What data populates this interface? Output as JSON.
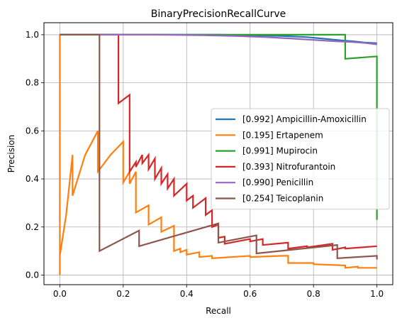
{
  "chart_data": {
    "type": "line",
    "title": "BinaryPrecisionRecallCurve",
    "xlabel": "Recall",
    "ylabel": "Precision",
    "xlim": [
      -0.05,
      1.05
    ],
    "ylim": [
      -0.04,
      1.05
    ],
    "xticks": [
      "0.0",
      "0.2",
      "0.4",
      "0.6",
      "0.8",
      "1.0"
    ],
    "yticks": [
      "0.0",
      "0.2",
      "0.4",
      "0.6",
      "0.8",
      "1.0"
    ],
    "grid": true,
    "legend_position": "center-right",
    "series": [
      {
        "name": "[0.992] Ampicillin-Amoxicillin",
        "color": "#1f77b4",
        "points": [
          [
            0,
            1
          ],
          [
            0.3,
            1
          ],
          [
            0.5,
            1
          ],
          [
            0.6,
            0.998
          ],
          [
            0.7,
            0.995
          ],
          [
            0.78,
            0.99
          ],
          [
            0.82,
            0.985
          ],
          [
            0.86,
            0.98
          ],
          [
            0.9,
            0.975
          ],
          [
            0.93,
            0.972
          ],
          [
            0.96,
            0.968
          ],
          [
            0.98,
            0.966
          ],
          [
            1.0,
            0.965
          ]
        ]
      },
      {
        "name": "[0.195] Ertapenem",
        "color": "#ff7f0e",
        "points": [
          [
            0,
            0
          ],
          [
            0,
            1
          ],
          [
            0,
            0.08
          ],
          [
            0.02,
            0.25
          ],
          [
            0.04,
            0.5
          ],
          [
            0.04,
            0.33
          ],
          [
            0.08,
            0.5
          ],
          [
            0.1,
            0.55
          ],
          [
            0.12,
            0.6
          ],
          [
            0.12,
            0.43
          ],
          [
            0.16,
            0.5
          ],
          [
            0.2,
            0.555
          ],
          [
            0.2,
            0.385
          ],
          [
            0.22,
            0.43
          ],
          [
            0.22,
            0.38
          ],
          [
            0.24,
            0.43
          ],
          [
            0.24,
            0.26
          ],
          [
            0.28,
            0.29
          ],
          [
            0.28,
            0.21
          ],
          [
            0.32,
            0.24
          ],
          [
            0.32,
            0.18
          ],
          [
            0.36,
            0.205
          ],
          [
            0.36,
            0.1
          ],
          [
            0.38,
            0.11
          ],
          [
            0.38,
            0.095
          ],
          [
            0.4,
            0.105
          ],
          [
            0.4,
            0.085
          ],
          [
            0.44,
            0.095
          ],
          [
            0.44,
            0.075
          ],
          [
            0.48,
            0.08
          ],
          [
            0.48,
            0.07
          ],
          [
            0.6,
            0.08
          ],
          [
            0.6,
            0.075
          ],
          [
            0.7,
            0.08
          ],
          [
            0.72,
            0.08
          ],
          [
            0.72,
            0.05
          ],
          [
            0.8,
            0.05
          ],
          [
            0.8,
            0.045
          ],
          [
            0.9,
            0.04
          ],
          [
            0.9,
            0.03
          ],
          [
            0.94,
            0.035
          ],
          [
            0.94,
            0.03
          ],
          [
            1.0,
            0.03
          ]
        ]
      },
      {
        "name": "[0.991] Mupirocin",
        "color": "#2ca02c",
        "points": [
          [
            0,
            1
          ],
          [
            0.5,
            1
          ],
          [
            0.9,
            1
          ],
          [
            0.9,
            0.9
          ],
          [
            1.0,
            0.91
          ],
          [
            1.0,
            0.23
          ]
        ]
      },
      {
        "name": "[0.393] Nitrofurantoin",
        "color": "#d62728",
        "points": [
          [
            0,
            1
          ],
          [
            0.185,
            1
          ],
          [
            0.185,
            0.715
          ],
          [
            0.22,
            0.75
          ],
          [
            0.22,
            0.43
          ],
          [
            0.24,
            0.47
          ],
          [
            0.24,
            0.45
          ],
          [
            0.26,
            0.5
          ],
          [
            0.26,
            0.465
          ],
          [
            0.28,
            0.5
          ],
          [
            0.28,
            0.44
          ],
          [
            0.3,
            0.485
          ],
          [
            0.3,
            0.4
          ],
          [
            0.32,
            0.445
          ],
          [
            0.32,
            0.38
          ],
          [
            0.34,
            0.42
          ],
          [
            0.34,
            0.36
          ],
          [
            0.36,
            0.4
          ],
          [
            0.36,
            0.33
          ],
          [
            0.4,
            0.38
          ],
          [
            0.4,
            0.31
          ],
          [
            0.42,
            0.33
          ],
          [
            0.42,
            0.28
          ],
          [
            0.46,
            0.32
          ],
          [
            0.46,
            0.25
          ],
          [
            0.48,
            0.27
          ],
          [
            0.48,
            0.2
          ],
          [
            0.5,
            0.21
          ],
          [
            0.5,
            0.155
          ],
          [
            0.52,
            0.16
          ],
          [
            0.52,
            0.13
          ],
          [
            0.6,
            0.15
          ],
          [
            0.6,
            0.14
          ],
          [
            0.64,
            0.15
          ],
          [
            0.64,
            0.125
          ],
          [
            0.72,
            0.135
          ],
          [
            0.72,
            0.11
          ],
          [
            0.78,
            0.12
          ],
          [
            0.78,
            0.115
          ],
          [
            0.86,
            0.13
          ],
          [
            0.86,
            0.105
          ],
          [
            0.9,
            0.115
          ],
          [
            0.9,
            0.11
          ],
          [
            1.0,
            0.12
          ]
        ]
      },
      {
        "name": "[0.990] Penicillin",
        "color": "#9467bd",
        "points": [
          [
            0,
            1
          ],
          [
            0.3,
            1
          ],
          [
            0.45,
            0.998
          ],
          [
            0.55,
            0.995
          ],
          [
            0.65,
            0.99
          ],
          [
            0.72,
            0.985
          ],
          [
            0.78,
            0.98
          ],
          [
            0.84,
            0.975
          ],
          [
            0.88,
            0.972
          ],
          [
            0.92,
            0.97
          ],
          [
            0.96,
            0.966
          ],
          [
            1.0,
            0.96
          ]
        ]
      },
      {
        "name": "[0.254] Teicoplanin",
        "color": "#8c564b",
        "points": [
          [
            0,
            1
          ],
          [
            0.125,
            1
          ],
          [
            0.125,
            0.1
          ],
          [
            0.25,
            0.185
          ],
          [
            0.25,
            0.12
          ],
          [
            0.5,
            0.215
          ],
          [
            0.5,
            0.135
          ],
          [
            0.62,
            0.165
          ],
          [
            0.62,
            0.09
          ],
          [
            0.875,
            0.125
          ],
          [
            0.875,
            0.07
          ],
          [
            1.0,
            0.08
          ],
          [
            1.0,
            0.065
          ]
        ]
      }
    ]
  }
}
